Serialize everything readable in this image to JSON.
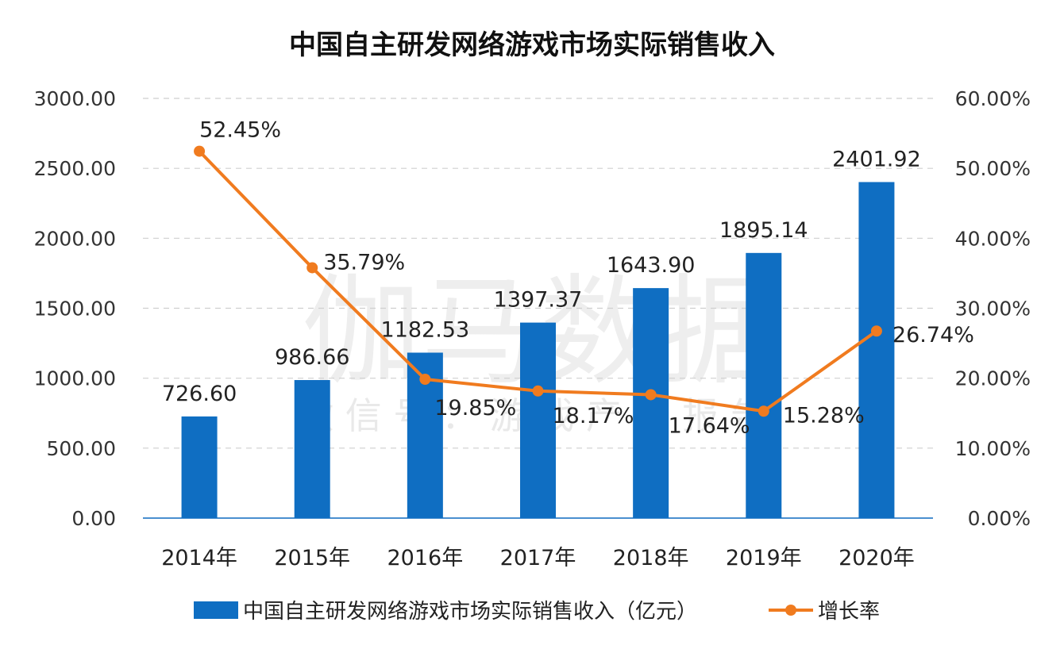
{
  "chart_data": {
    "type": "bar+line",
    "title": "中国自主研发网络游戏市场实际销售收入",
    "categories": [
      "2014年",
      "2015年",
      "2016年",
      "2017年",
      "2018年",
      "2019年",
      "2020年"
    ],
    "series": [
      {
        "name": "中国自主研发网络游戏市场实际销售收入（亿元）",
        "kind": "bar",
        "axis": "left",
        "color": "#0f6ec2",
        "values": [
          726.6,
          986.66,
          1182.53,
          1397.37,
          1643.9,
          1895.14,
          2401.92
        ],
        "labels": [
          "726.60",
          "986.66",
          "1182.53",
          "1397.37",
          "1643.90",
          "1895.14",
          "2401.92"
        ]
      },
      {
        "name": "增长率",
        "kind": "line",
        "axis": "right",
        "color": "#f07b1f",
        "values": [
          52.45,
          35.79,
          19.85,
          18.17,
          17.64,
          15.28,
          26.74
        ],
        "labels": [
          "52.45%",
          "35.79%",
          "19.85%",
          "18.17%",
          "17.64%",
          "15.28%",
          "26.74%"
        ]
      }
    ],
    "left_axis": {
      "ylim": [
        0,
        3000
      ],
      "ticks": [
        "0.00",
        "500.00",
        "1000.00",
        "1500.00",
        "2000.00",
        "2500.00",
        "3000.00"
      ]
    },
    "right_axis": {
      "ylim": [
        0,
        60
      ],
      "ticks": [
        "0.00%",
        "10.00%",
        "20.00%",
        "30.00%",
        "40.00%",
        "50.00%",
        "60.00%"
      ]
    },
    "grid": true,
    "legend": "bottom"
  },
  "watermark": {
    "main": "伽马数据",
    "sub": "微 信 号 ： 游 戏 产 业 报 告"
  }
}
